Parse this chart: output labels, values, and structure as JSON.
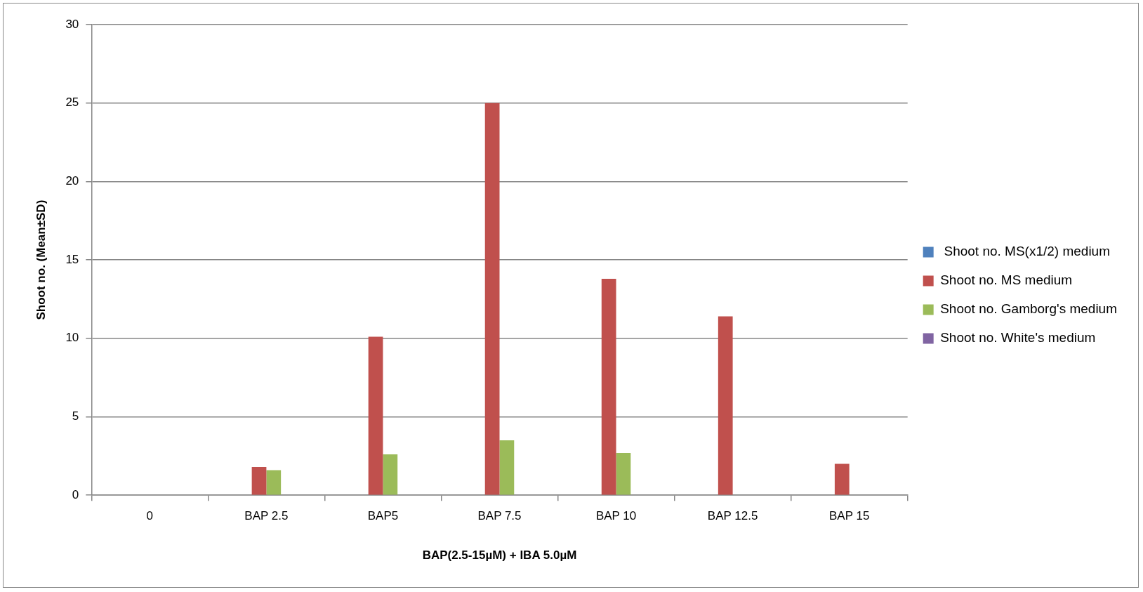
{
  "chart_data": {
    "type": "bar",
    "xlabel": "BAP(2.5-15µM) + IBA 5.0µM",
    "ylabel": "Shoot no. (Mean±SD)",
    "categories": [
      "0",
      "BAP 2.5",
      "BAP5",
      "BAP 7.5",
      "BAP 10",
      "BAP 12.5",
      "BAP 15"
    ],
    "series": [
      {
        "name": " Shoot no. MS(x1/2) medium",
        "color": "#4f81bd",
        "values": [
          0,
          0,
          0,
          0,
          0,
          0,
          0
        ]
      },
      {
        "name": "Shoot no. MS medium",
        "color": "#c0504d",
        "values": [
          0,
          1.8,
          10.1,
          25.0,
          13.8,
          11.4,
          2.0
        ]
      },
      {
        "name": "Shoot no. Gamborg's medium",
        "color": "#9bbb59",
        "values": [
          0,
          1.6,
          2.6,
          3.5,
          2.7,
          0,
          0
        ]
      },
      {
        "name": "Shoot no. White's medium",
        "color": "#8064a2",
        "values": [
          0,
          0,
          0,
          0,
          0,
          0,
          0
        ]
      }
    ],
    "ylim": [
      0,
      30
    ],
    "yticks": [
      0,
      5,
      10,
      15,
      20,
      25,
      30
    ],
    "grid": "y",
    "legend": "right"
  }
}
